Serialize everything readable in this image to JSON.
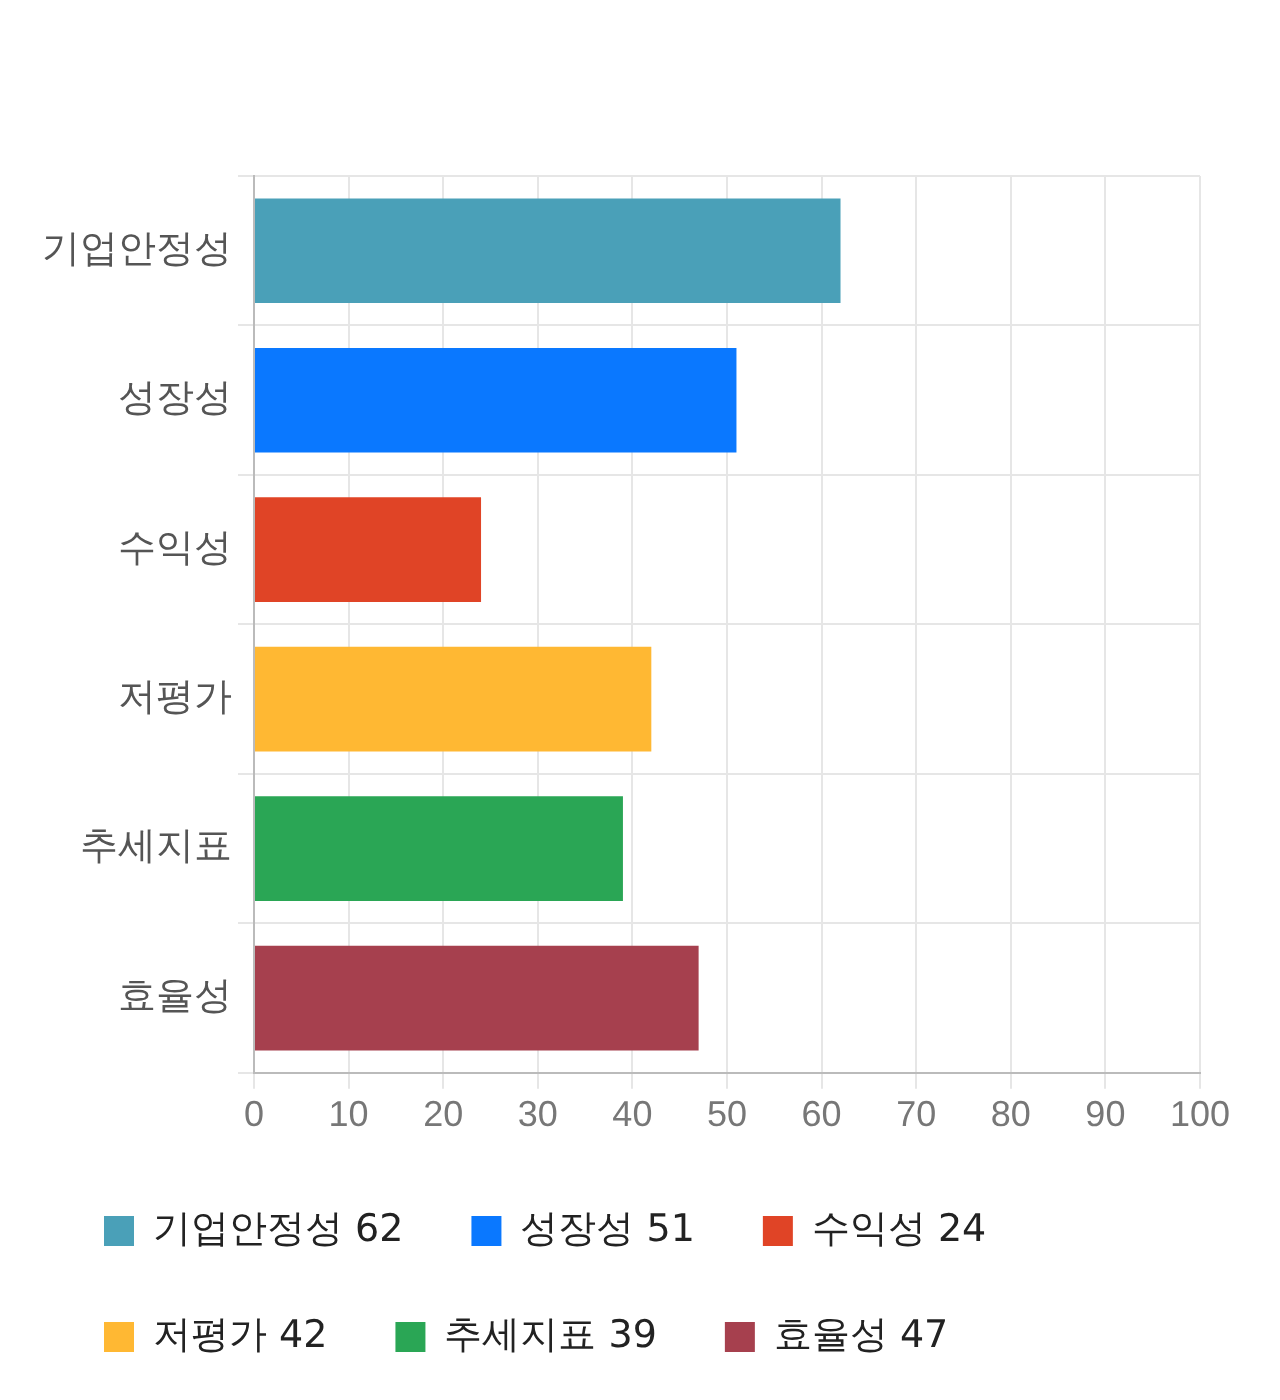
{
  "chart_data": {
    "type": "bar",
    "orientation": "horizontal",
    "categories": [
      "기업안정성",
      "성장성",
      "수익성",
      "저평가",
      "추세지표",
      "효율성"
    ],
    "series": [
      {
        "name": "기업안정성 62",
        "color": "#4aa0b8",
        "values": [
          62,
          null,
          null,
          null,
          null,
          null
        ]
      },
      {
        "name": "성장성 51",
        "color": "#0a78ff",
        "values": [
          null,
          51,
          null,
          null,
          null,
          null
        ]
      },
      {
        "name": "수익성 24",
        "color": "#e04426",
        "values": [
          null,
          null,
          24,
          null,
          null,
          null
        ]
      },
      {
        "name": "저평가 42",
        "color": "#ffb833",
        "values": [
          null,
          null,
          null,
          42,
          null,
          null
        ]
      },
      {
        "name": "추세지표 39",
        "color": "#2aa655",
        "values": [
          null,
          null,
          null,
          null,
          39,
          null
        ]
      },
      {
        "name": "효율성 47",
        "color": "#a6404e",
        "values": [
          null,
          null,
          null,
          null,
          null,
          47
        ]
      }
    ],
    "xlim": [
      0,
      100
    ],
    "xticks": [
      0,
      10,
      20,
      30,
      40,
      50,
      60,
      70,
      80,
      90,
      100
    ],
    "grid": true,
    "legend": "bottom"
  }
}
